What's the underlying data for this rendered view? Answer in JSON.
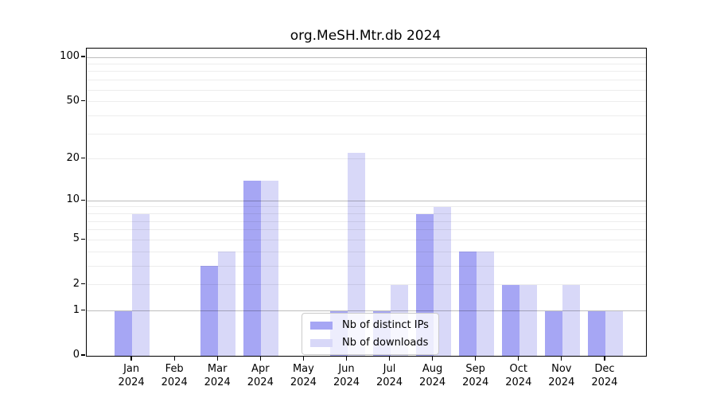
{
  "chart_data": {
    "type": "bar",
    "title": "org.MeSH.Mtr.db 2024",
    "categories": [
      "Jan 2024",
      "Feb 2024",
      "Mar 2024",
      "Apr 2024",
      "May 2024",
      "Jun 2024",
      "Jul 2024",
      "Aug 2024",
      "Sep 2024",
      "Oct 2024",
      "Nov 2024",
      "Dec 2024"
    ],
    "series": [
      {
        "name": "Nb of distinct IPs",
        "color": "#a6a6f4",
        "values": [
          1,
          0,
          3,
          14,
          0,
          1,
          1,
          8,
          4,
          2,
          1,
          1
        ]
      },
      {
        "name": "Nb of downloads",
        "color": "#d8d8f8",
        "values": [
          8,
          0,
          4,
          14,
          0,
          22,
          2,
          9,
          4,
          2,
          2,
          1
        ]
      }
    ],
    "xlabel": "",
    "ylabel": "",
    "y_axis": {
      "scale": "log1p",
      "ticks": [
        0,
        1,
        2,
        5,
        10,
        20,
        50,
        100
      ],
      "major_gridlines": [
        1,
        10,
        100
      ],
      "minor_gridlines": [
        2,
        3,
        4,
        5,
        6,
        7,
        8,
        9,
        20,
        30,
        40,
        50,
        60,
        70,
        80,
        90
      ],
      "ylim": [
        0,
        115
      ]
    },
    "legend": {
      "position": "lower center"
    },
    "grid": true,
    "colors": {
      "major_grid": "rgba(0,0,0,0.26)",
      "minor_grid": "rgba(0,0,0,0.07)",
      "axis": "#000000",
      "background": "#ffffff"
    }
  }
}
